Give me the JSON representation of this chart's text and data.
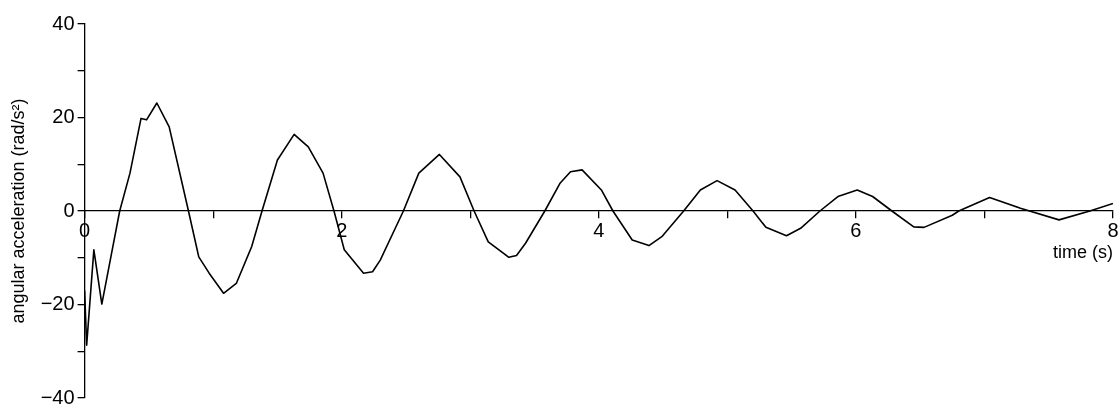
{
  "chart_data": {
    "type": "line",
    "xlabel": "time (s)",
    "ylabel": "angular acceleration (rad/s²)",
    "x": [
      0,
      0.016,
      0.072,
      0.134,
      0.273,
      0.353,
      0.439,
      0.482,
      0.562,
      0.658,
      0.808,
      0.888,
      0.969,
      1.081,
      1.18,
      1.3,
      1.38,
      1.5,
      1.63,
      1.74,
      1.855,
      1.94,
      2.02,
      2.17,
      2.24,
      2.3,
      2.48,
      2.6,
      2.76,
      2.92,
      3.03,
      3.14,
      3.3,
      3.36,
      3.43,
      3.58,
      3.7,
      3.78,
      3.87,
      4.02,
      4.11,
      4.26,
      4.39,
      4.49,
      4.66,
      4.79,
      4.92,
      5.06,
      5.2,
      5.3,
      5.46,
      5.57,
      5.72,
      5.86,
      6.01,
      6.13,
      6.28,
      6.45,
      6.53,
      6.75,
      6.8,
      7.04,
      7.28,
      7.58,
      7.82,
      8.0
    ],
    "series": [
      {
        "color": "#000000",
        "values": [
          -17,
          -28.7,
          -8.3,
          -19.9,
          0,
          8.1,
          19.8,
          19.5,
          23.1,
          18,
          0,
          -9.8,
          -13.3,
          -17.6,
          -15.5,
          -7.6,
          0,
          10.9,
          16.4,
          13.7,
          8.1,
          0,
          -8.3,
          -13.3,
          -13,
          -10.5,
          0,
          8.1,
          12.1,
          7.3,
          0,
          -6.6,
          -9.9,
          -9.5,
          -6.9,
          0,
          6,
          8.4,
          8.8,
          4.5,
          0,
          -6.2,
          -7.4,
          -5.5,
          0,
          4.5,
          6.5,
          4.5,
          0,
          -3.5,
          -5.3,
          -3.7,
          0,
          3.1,
          4.5,
          3.1,
          0,
          -3.4,
          -3.5,
          -0.9,
          0,
          2.9,
          0.6,
          -1.9,
          0,
          1.6
        ]
      }
    ],
    "xlim": [
      0,
      8
    ],
    "ylim": [
      -40,
      40
    ],
    "xticks": [
      0,
      {
        "value": 1,
        "label": null
      },
      2,
      {
        "value": 3,
        "label": null
      },
      4,
      {
        "value": 5,
        "label": null
      },
      6,
      {
        "value": 7,
        "label": null
      },
      8
    ],
    "yticks": [
      -40,
      {
        "value": -30,
        "label": null
      },
      -20,
      {
        "value": -10,
        "label": null
      },
      0,
      {
        "value": 10,
        "label": null
      },
      20,
      {
        "value": 30,
        "label": null
      },
      40
    ],
    "grid": false
  }
}
